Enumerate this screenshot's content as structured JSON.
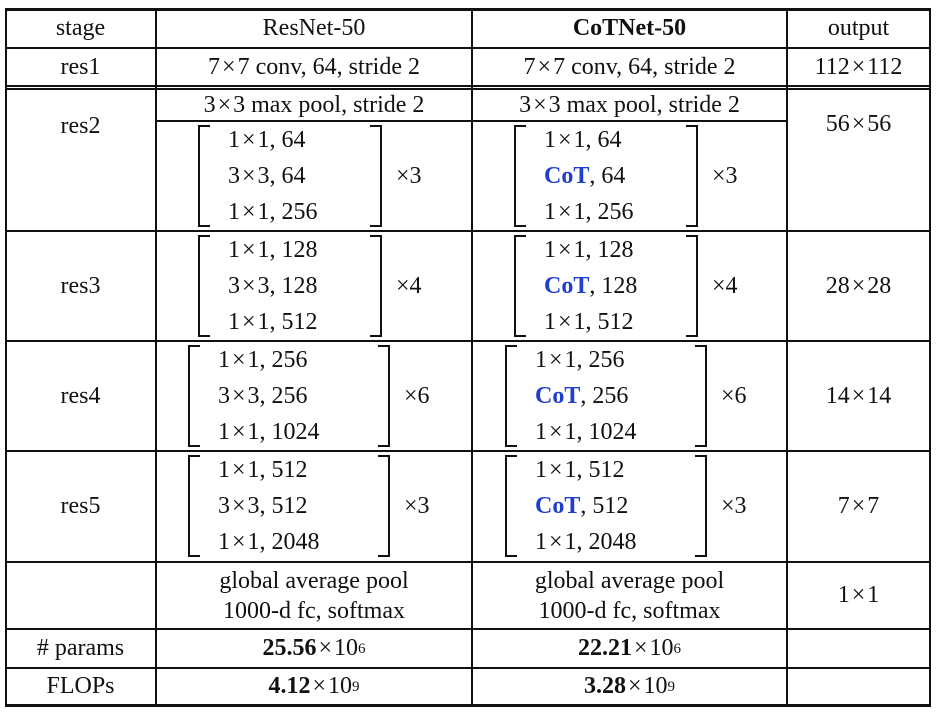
{
  "header": {
    "stage": "stage",
    "resnet": "ResNet-50",
    "cotnet": "CoTNet-50",
    "output": "output"
  },
  "rows": {
    "res1": {
      "stage": "res1",
      "resnet": {
        "a": "7",
        "b": "7 conv, 64, stride 2"
      },
      "cotnet": {
        "a": "7",
        "b": "7 conv, 64, stride 2"
      },
      "output": {
        "a": "112",
        "b": "112"
      }
    },
    "res2": {
      "stage": "res2",
      "pool": {
        "resnet": {
          "a": "3",
          "b": "3 max pool, stride 2"
        },
        "cotnet": {
          "a": "3",
          "b": "3 max pool, stride 2"
        }
      },
      "output": {
        "a": "56",
        "b": "56"
      },
      "resnet_block": {
        "line1": {
          "a": "1",
          "b": "1, 64"
        },
        "line2": {
          "a": "3",
          "b": "3, 64"
        },
        "line3": {
          "a": "1",
          "b": "1, 256"
        },
        "repeat": "3"
      },
      "cotnet_block": {
        "line1": {
          "a": "1",
          "b": "1, 64"
        },
        "line2": {
          "cot": "CoT",
          "rest": ", 64"
        },
        "line3": {
          "a": "1",
          "b": "1, 256"
        },
        "repeat": "3"
      }
    },
    "res3": {
      "stage": "res3",
      "output": {
        "a": "28",
        "b": "28"
      },
      "resnet_block": {
        "line1": {
          "a": "1",
          "b": "1, 128"
        },
        "line2": {
          "a": "3",
          "b": "3, 128"
        },
        "line3": {
          "a": "1",
          "b": "1, 512"
        },
        "repeat": "4"
      },
      "cotnet_block": {
        "line1": {
          "a": "1",
          "b": "1, 128"
        },
        "line2": {
          "cot": "CoT",
          "rest": ", 128"
        },
        "line3": {
          "a": "1",
          "b": "1, 512"
        },
        "repeat": "4"
      }
    },
    "res4": {
      "stage": "res4",
      "output": {
        "a": "14",
        "b": "14"
      },
      "resnet_block": {
        "line1": {
          "a": "1",
          "b": "1, 256"
        },
        "line2": {
          "a": "3",
          "b": "3, 256"
        },
        "line3": {
          "a": "1",
          "b": "1, 1024"
        },
        "repeat": "6"
      },
      "cotnet_block": {
        "line1": {
          "a": "1",
          "b": "1, 256"
        },
        "line2": {
          "cot": "CoT",
          "rest": ", 256"
        },
        "line3": {
          "a": "1",
          "b": "1, 1024"
        },
        "repeat": "6"
      }
    },
    "res5": {
      "stage": "res5",
      "output": {
        "a": "7",
        "b": "7"
      },
      "resnet_block": {
        "line1": {
          "a": "1",
          "b": "1, 512"
        },
        "line2": {
          "a": "3",
          "b": "3, 512"
        },
        "line3": {
          "a": "1",
          "b": "1, 2048"
        },
        "repeat": "3"
      },
      "cotnet_block": {
        "line1": {
          "a": "1",
          "b": "1, 512"
        },
        "line2": {
          "cot": "CoT",
          "rest": ", 512"
        },
        "line3": {
          "a": "1",
          "b": "1, 2048"
        },
        "repeat": "3"
      }
    },
    "head": {
      "resnet": {
        "line1": "global average pool",
        "line2": "1000-d fc, softmax"
      },
      "cotnet": {
        "line1": "global average pool",
        "line2": "1000-d fc, softmax"
      },
      "output": {
        "a": "1",
        "b": "1"
      }
    },
    "params": {
      "label": "# params",
      "resnet": {
        "mant": "25.56",
        "base": "10",
        "exp": "6"
      },
      "cotnet": {
        "mant": "22.21",
        "base": "10",
        "exp": "6"
      }
    },
    "flops": {
      "label": "FLOPs",
      "resnet": {
        "mant": "4.12",
        "base": "10",
        "exp": "9"
      },
      "cotnet": {
        "mant": "3.28",
        "base": "10",
        "exp": "9"
      }
    }
  }
}
